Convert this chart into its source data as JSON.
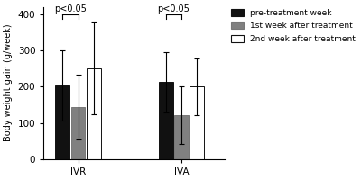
{
  "groups": [
    "IVR",
    "IVA"
  ],
  "bar_labels": [
    "pre-treatment week",
    "1st week after treatment",
    "2nd week after treatment"
  ],
  "bar_colors": [
    "#111111",
    "#808080",
    "#ffffff"
  ],
  "bar_edgecolors": [
    "#111111",
    "#777777",
    "#111111"
  ],
  "values": {
    "IVR": [
      202,
      143,
      251
    ],
    "IVA": [
      212,
      121,
      200
    ]
  },
  "errors": {
    "IVR": [
      97,
      90,
      128
    ],
    "IVA": [
      83,
      80,
      78
    ]
  },
  "ylabel": "Body weight gain (g/week)",
  "ylim": [
    0,
    420
  ],
  "yticks": [
    0,
    100,
    200,
    300,
    400
  ],
  "group_labels": [
    "IVR",
    "IVA"
  ],
  "significance_label": "p<0.05",
  "bar_width": 0.18,
  "group_centers": [
    1.0,
    2.2
  ],
  "legend_fontsize": 6.5,
  "ylabel_fontsize": 7,
  "tick_fontsize": 7.5,
  "annot_fontsize": 7,
  "background_color": "#ffffff"
}
